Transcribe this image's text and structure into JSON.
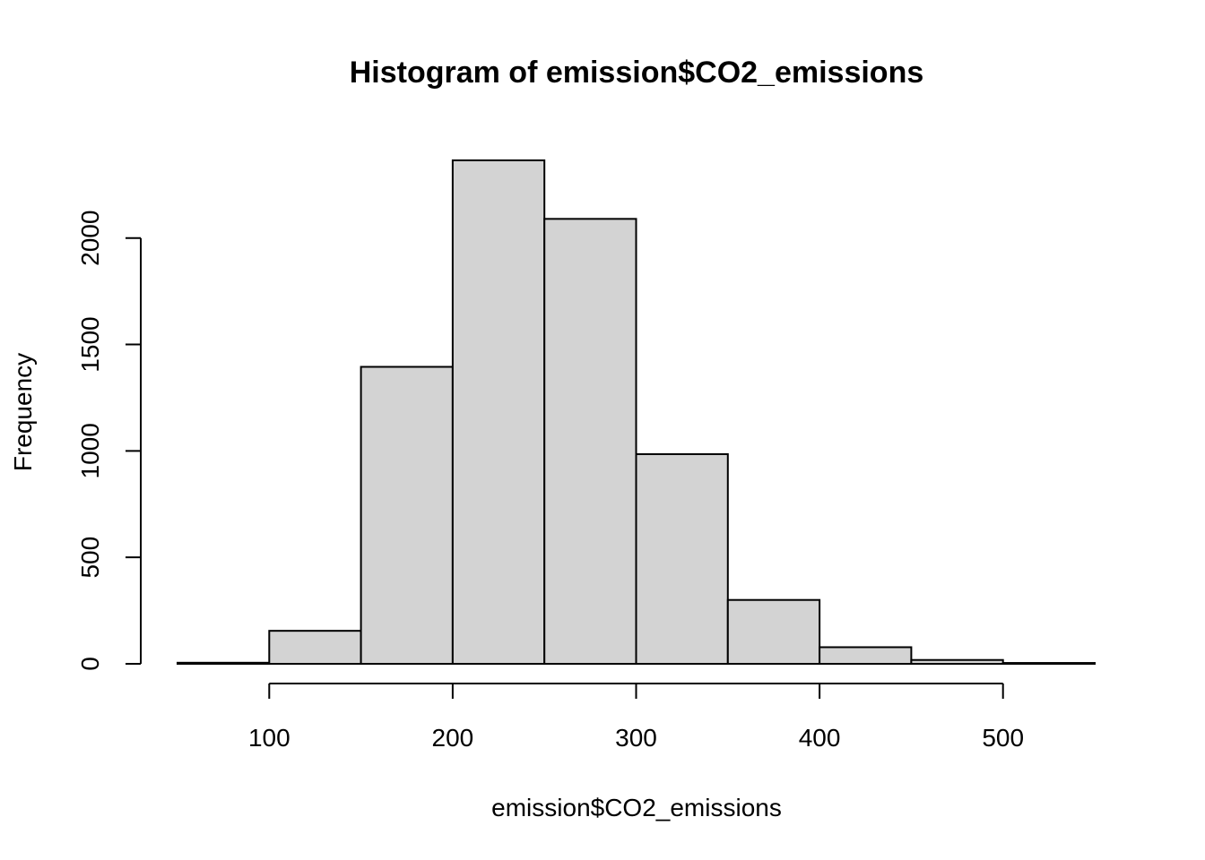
{
  "chart_data": {
    "type": "bar",
    "title": "Histogram of emission$CO2_emissions",
    "xlabel": "emission$CO2_emissions",
    "ylabel": "Frequency",
    "bins": [
      {
        "start": 50,
        "end": 100,
        "count": 5
      },
      {
        "start": 100,
        "end": 150,
        "count": 155
      },
      {
        "start": 150,
        "end": 200,
        "count": 1395
      },
      {
        "start": 200,
        "end": 250,
        "count": 2365
      },
      {
        "start": 250,
        "end": 300,
        "count": 2090
      },
      {
        "start": 300,
        "end": 350,
        "count": 985
      },
      {
        "start": 350,
        "end": 400,
        "count": 300
      },
      {
        "start": 400,
        "end": 450,
        "count": 78
      },
      {
        "start": 450,
        "end": 500,
        "count": 18
      },
      {
        "start": 500,
        "end": 550,
        "count": 4
      }
    ],
    "xlim": [
      50,
      550
    ],
    "ylim": [
      0,
      2365
    ],
    "xticks": [
      100,
      200,
      300,
      400,
      500
    ],
    "yticks": [
      0,
      500,
      1000,
      1500,
      2000
    ],
    "xtick_labels": [
      "100",
      "200",
      "300",
      "400",
      "500"
    ],
    "ytick_labels": [
      "0",
      "500",
      "1000",
      "1500",
      "2000"
    ],
    "grid": false,
    "colors": {
      "bar_fill": "#d3d3d3",
      "bar_stroke": "#000000"
    }
  }
}
